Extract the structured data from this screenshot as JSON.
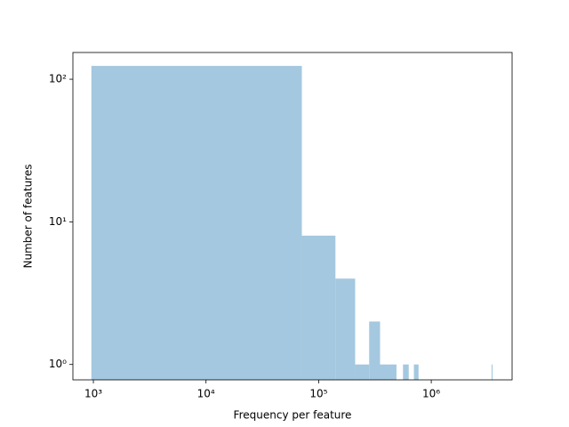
{
  "chart_data": {
    "type": "histogram",
    "xlabel": "Frequency per feature",
    "ylabel": "Number of features",
    "bins": [
      960,
      70960,
      140960,
      210960,
      280960,
      350960,
      420960,
      490960,
      560960,
      630960,
      700960,
      770960,
      840960,
      910960,
      980960,
      1050960,
      1120960,
      1190960,
      1260960,
      1330960,
      1400960,
      1470960,
      1540960,
      1610960,
      1680960,
      1750960,
      1820960,
      1890960,
      1960960,
      2030960,
      2100960,
      2170960,
      2240960,
      2310960,
      2380960,
      2450960,
      2520960,
      2590960,
      2660960,
      2730960,
      2800960,
      2870960,
      2940960,
      3010960,
      3080960,
      3150960,
      3220960,
      3290960,
      3360960,
      3430960,
      3500960
    ],
    "counts": [
      124,
      8,
      4,
      1,
      2,
      1,
      1,
      0,
      1,
      0,
      1,
      0,
      0,
      0,
      0,
      0,
      0,
      0,
      0,
      0,
      0,
      0,
      0,
      0,
      0,
      0,
      0,
      0,
      0,
      0,
      0,
      0,
      0,
      0,
      0,
      0,
      0,
      0,
      0,
      0,
      0,
      0,
      0,
      0,
      0,
      0,
      0,
      0,
      0,
      1
    ],
    "color": "#a4c8df",
    "xscale": "log",
    "yscale": "log",
    "xlim": [
      658,
      5220000
    ],
    "ylim": [
      0.78,
      154
    ],
    "xticks": [
      {
        "value": 1000,
        "label": "10³"
      },
      {
        "value": 10000,
        "label": "10⁴"
      },
      {
        "value": 100000,
        "label": "10⁵"
      },
      {
        "value": 1000000,
        "label": "10⁶"
      }
    ],
    "yticks": [
      {
        "value": 1,
        "label": "10⁰"
      },
      {
        "value": 10,
        "label": "10¹"
      },
      {
        "value": 100,
        "label": "10²"
      }
    ]
  }
}
